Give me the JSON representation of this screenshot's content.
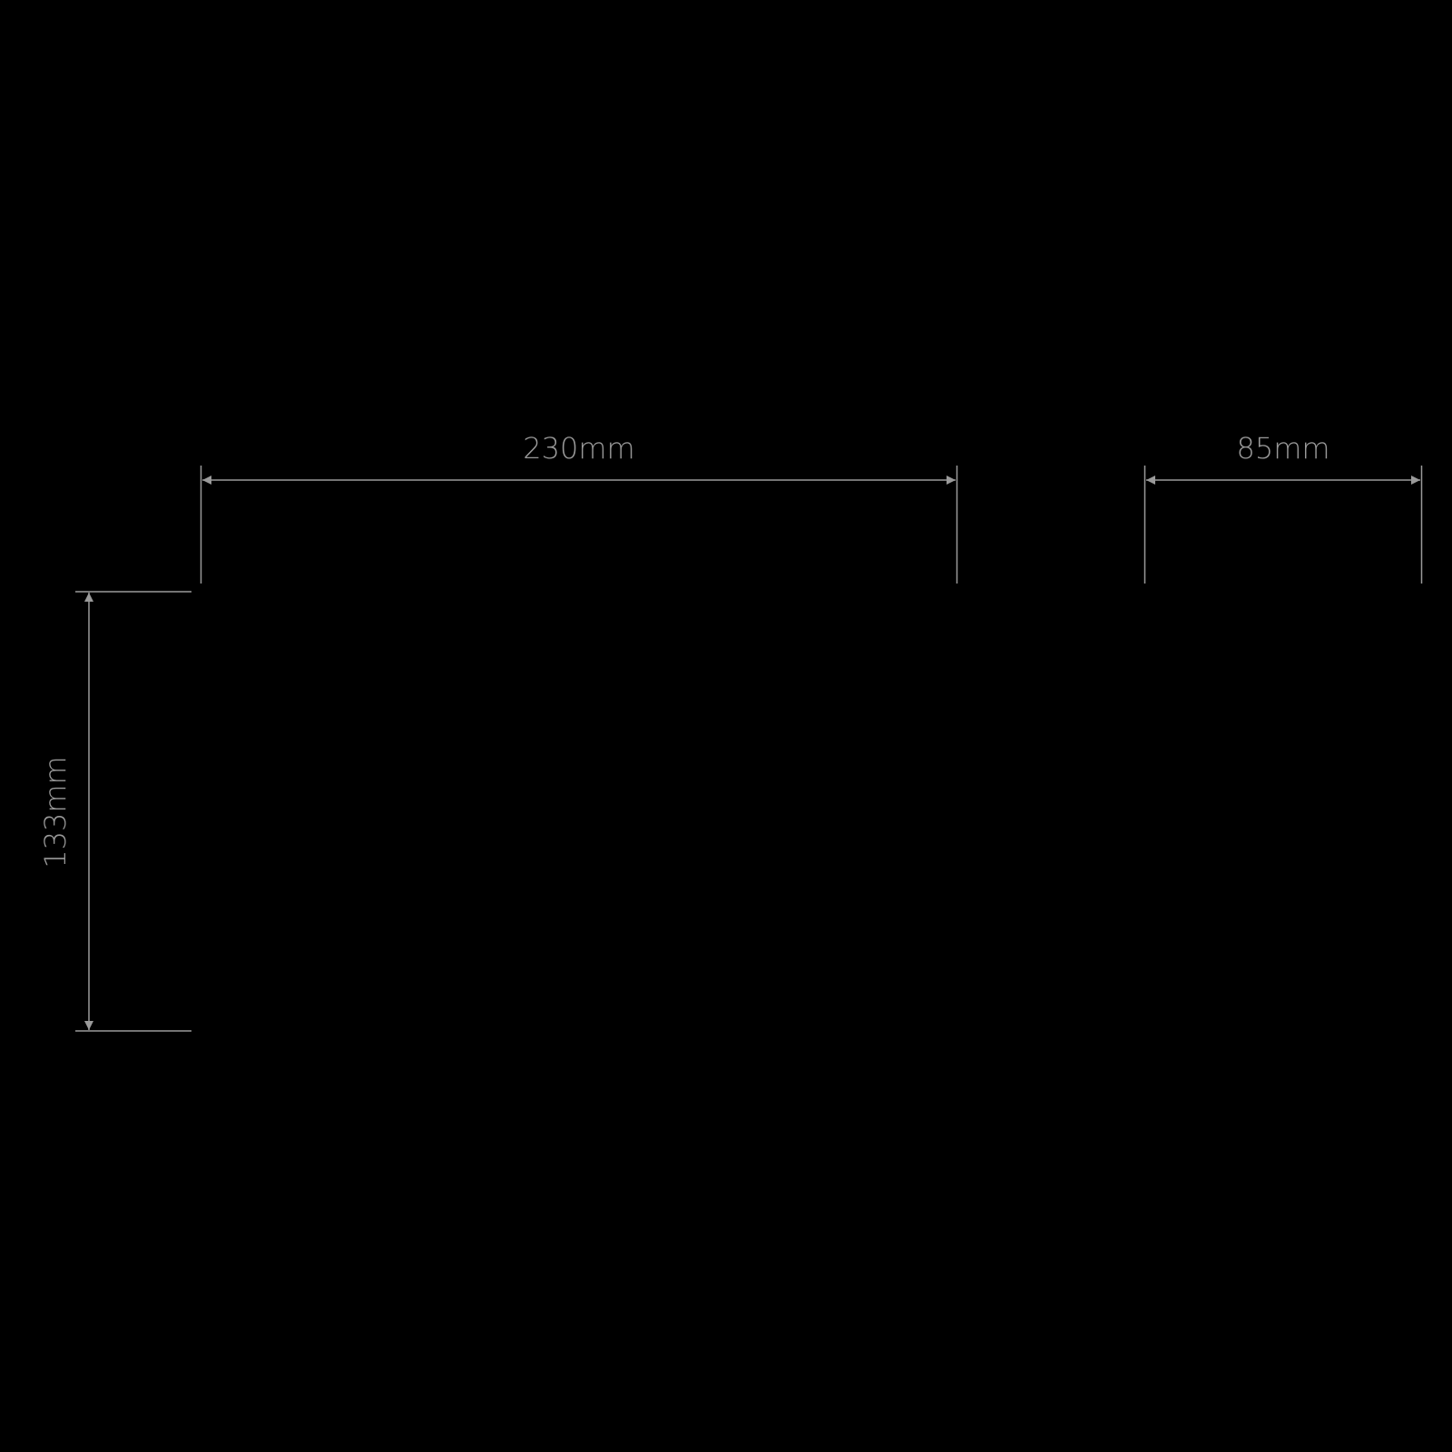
{
  "background": "#000000",
  "line_color": "#9a9a9a",
  "dimensions": {
    "width_main": "230mm",
    "width_side": "85mm",
    "height": "133mm"
  }
}
